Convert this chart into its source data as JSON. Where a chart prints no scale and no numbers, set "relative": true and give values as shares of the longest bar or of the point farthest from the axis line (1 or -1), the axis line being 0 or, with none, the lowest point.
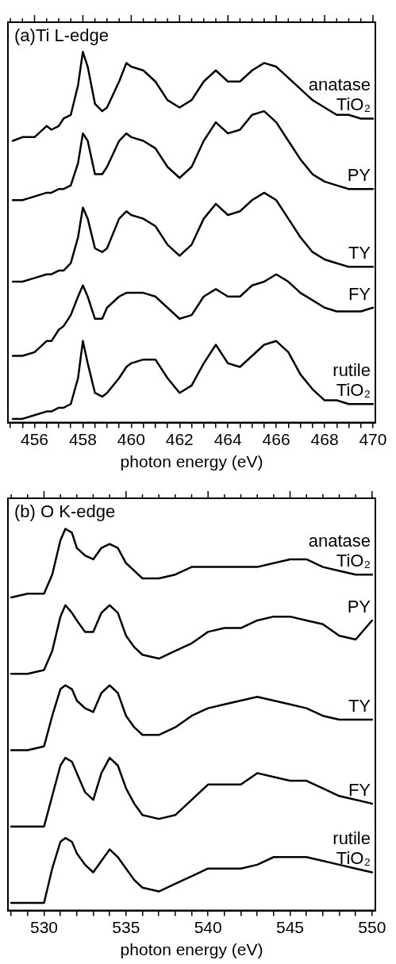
{
  "chart_data": [
    {
      "type": "line",
      "title": "(a)Ti L-edge",
      "xlabel": "photon energy (eV)",
      "relative": true,
      "grid": false,
      "legend": false,
      "marker": "none",
      "tick_labels": "x",
      "xlim": [
        454.9,
        470.1
      ],
      "xticks": [
        {
          "value": 455,
          "label": null
        },
        {
          "value": 455.5,
          "label": null
        },
        456,
        {
          "value": 456.5,
          "label": null
        },
        {
          "value": 457,
          "label": null
        },
        {
          "value": 457.5,
          "label": null
        },
        458,
        {
          "value": 458.5,
          "label": null
        },
        {
          "value": 459,
          "label": null
        },
        {
          "value": 459.5,
          "label": null
        },
        460,
        {
          "value": 460.5,
          "label": null
        },
        {
          "value": 461,
          "label": null
        },
        {
          "value": 461.5,
          "label": null
        },
        462,
        {
          "value": 462.5,
          "label": null
        },
        {
          "value": 463,
          "label": null
        },
        {
          "value": 463.5,
          "label": null
        },
        464,
        {
          "value": 464.5,
          "label": null
        },
        {
          "value": 465,
          "label": null
        },
        {
          "value": 465.5,
          "label": null
        },
        466,
        {
          "value": 466.5,
          "label": null
        },
        {
          "value": 467,
          "label": null
        },
        {
          "value": 467.5,
          "label": null
        },
        468,
        {
          "value": 468.5,
          "label": null
        },
        {
          "value": 469,
          "label": null
        },
        {
          "value": 469.5,
          "label": null
        },
        470
      ],
      "x": [
        455.1,
        455.5,
        456,
        456.5,
        456.7,
        457,
        457.2,
        457.5,
        457.8,
        458,
        458.2,
        458.5,
        458.8,
        459,
        459.5,
        459.8,
        460,
        460.5,
        461,
        461.5,
        462,
        462.5,
        463,
        463.5,
        464,
        464.5,
        465,
        465.5,
        466,
        466.5,
        467,
        467.5,
        468,
        468.5,
        469,
        469.5,
        470
      ],
      "series": [
        {
          "name": "anatase TiO₂",
          "color": "#000000",
          "values": [
            0.76,
            0.77,
            0.77,
            0.8,
            0.79,
            0.8,
            0.82,
            0.83,
            0.91,
            1,
            0.96,
            0.86,
            0.84,
            0.85,
            0.92,
            0.97,
            0.96,
            0.95,
            0.92,
            0.87,
            0.85,
            0.87,
            0.92,
            0.95,
            0.92,
            0.92,
            0.95,
            0.97,
            0.96,
            0.93,
            0.9,
            0.87,
            0.85,
            0.83,
            0.83,
            0.82,
            0.82
          ]
        },
        {
          "name": "PY",
          "color": "#000000",
          "values": [
            0.6,
            0.6,
            0.61,
            0.62,
            0.62,
            0.63,
            0.63,
            0.64,
            0.7,
            0.78,
            0.76,
            0.67,
            0.67,
            0.69,
            0.76,
            0.78,
            0.77,
            0.76,
            0.74,
            0.69,
            0.66,
            0.69,
            0.76,
            0.81,
            0.78,
            0.79,
            0.83,
            0.84,
            0.81,
            0.76,
            0.71,
            0.67,
            0.65,
            0.64,
            0.63,
            0.63,
            0.63
          ]
        },
        {
          "name": "TY",
          "color": "#000000",
          "values": [
            0.38,
            0.38,
            0.39,
            0.4,
            0.4,
            0.41,
            0.41,
            0.43,
            0.5,
            0.58,
            0.55,
            0.47,
            0.46,
            0.47,
            0.55,
            0.57,
            0.56,
            0.55,
            0.53,
            0.48,
            0.45,
            0.48,
            0.55,
            0.59,
            0.56,
            0.57,
            0.6,
            0.62,
            0.6,
            0.55,
            0.5,
            0.46,
            0.44,
            0.43,
            0.42,
            0.42,
            0.42
          ]
        },
        {
          "name": "FY",
          "color": "#000000",
          "values": [
            0.18,
            0.18,
            0.19,
            0.22,
            0.22,
            0.25,
            0.26,
            0.29,
            0.34,
            0.37,
            0.34,
            0.28,
            0.28,
            0.31,
            0.34,
            0.35,
            0.35,
            0.35,
            0.34,
            0.31,
            0.28,
            0.29,
            0.34,
            0.36,
            0.34,
            0.34,
            0.37,
            0.38,
            0.4,
            0.38,
            0.35,
            0.33,
            0.31,
            0.3,
            0.3,
            0.3,
            0.31
          ]
        },
        {
          "name": "rutile TiO₂",
          "color": "#000000",
          "values": [
            0.01,
            0.01,
            0.02,
            0.03,
            0.03,
            0.04,
            0.04,
            0.05,
            0.12,
            0.22,
            0.16,
            0.08,
            0.07,
            0.08,
            0.12,
            0.15,
            0.16,
            0.17,
            0.17,
            0.12,
            0.08,
            0.1,
            0.16,
            0.21,
            0.16,
            0.15,
            0.18,
            0.21,
            0.22,
            0.19,
            0.13,
            0.09,
            0.06,
            0.06,
            0.05,
            0.05,
            0.05
          ]
        }
      ]
    },
    {
      "type": "line",
      "title": "(b) O K-edge",
      "xlabel": "photon energy (eV)",
      "relative": true,
      "grid": false,
      "legend": false,
      "marker": "none",
      "tick_labels": "x",
      "xlim": [
        527.8,
        550.2
      ],
      "xticks": [
        {
          "value": 528,
          "label": null
        },
        {
          "value": 529,
          "label": null
        },
        530,
        {
          "value": 531,
          "label": null
        },
        {
          "value": 532,
          "label": null
        },
        {
          "value": 533,
          "label": null
        },
        {
          "value": 534,
          "label": null
        },
        535,
        {
          "value": 536,
          "label": null
        },
        {
          "value": 537,
          "label": null
        },
        {
          "value": 538,
          "label": null
        },
        {
          "value": 539,
          "label": null
        },
        540,
        {
          "value": 541,
          "label": null
        },
        {
          "value": 542,
          "label": null
        },
        {
          "value": 543,
          "label": null
        },
        {
          "value": 544,
          "label": null
        },
        545,
        {
          "value": 546,
          "label": null
        },
        {
          "value": 547,
          "label": null
        },
        {
          "value": 548,
          "label": null
        },
        {
          "value": 549,
          "label": null
        },
        550
      ],
      "x": [
        528,
        529,
        530,
        530.5,
        531,
        531.3,
        531.7,
        532,
        532.5,
        533,
        533.5,
        534,
        534.5,
        535,
        535.5,
        536,
        537,
        538,
        539,
        540,
        541,
        542,
        543,
        544,
        545,
        546,
        547,
        548,
        549,
        550
      ],
      "series": [
        {
          "name": "anatase TiO₂",
          "color": "#000000",
          "values": [
            0.82,
            0.83,
            0.83,
            0.88,
            0.97,
            1,
            0.99,
            0.95,
            0.93,
            0.92,
            0.95,
            0.96,
            0.95,
            0.91,
            0.89,
            0.87,
            0.87,
            0.88,
            0.9,
            0.9,
            0.9,
            0.9,
            0.9,
            0.91,
            0.92,
            0.92,
            0.9,
            0.89,
            0.88,
            0.88
          ]
        },
        {
          "name": "PY",
          "color": "#000000",
          "values": [
            0.62,
            0.62,
            0.63,
            0.68,
            0.77,
            0.8,
            0.78,
            0.76,
            0.73,
            0.73,
            0.78,
            0.8,
            0.78,
            0.72,
            0.69,
            0.67,
            0.66,
            0.68,
            0.7,
            0.73,
            0.74,
            0.74,
            0.76,
            0.77,
            0.77,
            0.76,
            0.75,
            0.72,
            0.71,
            0.76
          ]
        },
        {
          "name": "TY",
          "color": "#000000",
          "values": [
            0.42,
            0.42,
            0.43,
            0.51,
            0.58,
            0.59,
            0.58,
            0.55,
            0.53,
            0.52,
            0.57,
            0.59,
            0.57,
            0.51,
            0.48,
            0.46,
            0.46,
            0.48,
            0.51,
            0.53,
            0.54,
            0.55,
            0.56,
            0.55,
            0.54,
            0.53,
            0.51,
            0.5,
            0.5,
            0.5
          ]
        },
        {
          "name": "FY",
          "color": "#000000",
          "values": [
            0.22,
            0.22,
            0.22,
            0.3,
            0.38,
            0.4,
            0.39,
            0.36,
            0.31,
            0.29,
            0.36,
            0.4,
            0.38,
            0.32,
            0.28,
            0.25,
            0.24,
            0.25,
            0.29,
            0.33,
            0.33,
            0.33,
            0.36,
            0.35,
            0.34,
            0.34,
            0.32,
            0.3,
            0.29,
            0.28
          ]
        },
        {
          "name": "rutile TiO₂",
          "color": "#000000",
          "values": [
            0.02,
            0.02,
            0.02,
            0.11,
            0.18,
            0.19,
            0.18,
            0.15,
            0.12,
            0.1,
            0.13,
            0.16,
            0.14,
            0.11,
            0.08,
            0.06,
            0.05,
            0.07,
            0.09,
            0.11,
            0.11,
            0.11,
            0.12,
            0.14,
            0.14,
            0.14,
            0.13,
            0.12,
            0.11,
            0.1
          ]
        }
      ]
    }
  ]
}
